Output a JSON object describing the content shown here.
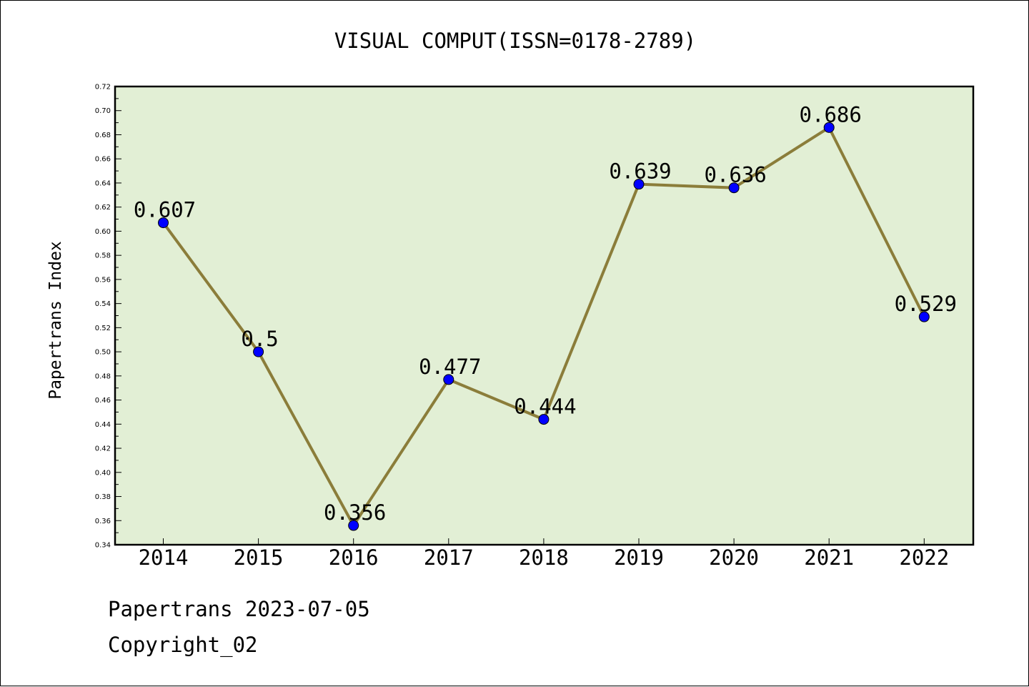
{
  "chart_data": {
    "type": "line",
    "title": "VISUAL COMPUT(ISSN=0178-2789)",
    "xlabel": "",
    "ylabel": "Papertrans Index",
    "categories": [
      "2014",
      "2015",
      "2016",
      "2017",
      "2018",
      "2019",
      "2020",
      "2021",
      "2022"
    ],
    "series": [
      {
        "values": [
          0.607,
          0.5,
          0.356,
          0.477,
          0.444,
          0.639,
          0.636,
          0.686,
          0.529
        ],
        "data_labels": [
          "0.607",
          "0.5",
          "0.356",
          "0.477",
          "0.444",
          "0.639",
          "0.636",
          "0.686",
          "0.529"
        ],
        "line_color": "#8b7d3a",
        "marker_color": "#0000ff"
      }
    ],
    "ylim": [
      0.34,
      0.72
    ],
    "y_ticks": [
      "0.34",
      "0.36",
      "0.38",
      "0.40",
      "0.42",
      "0.44",
      "0.46",
      "0.48",
      "0.50",
      "0.52",
      "0.54",
      "0.56",
      "0.58",
      "0.60",
      "0.62",
      "0.64",
      "0.66",
      "0.68",
      "0.70",
      "0.72"
    ],
    "grid": false,
    "legend": "none",
    "plot_background": "#e2efd5"
  },
  "footer": {
    "line1": "Papertrans 2023-07-05",
    "line2": "Copyright_02"
  }
}
